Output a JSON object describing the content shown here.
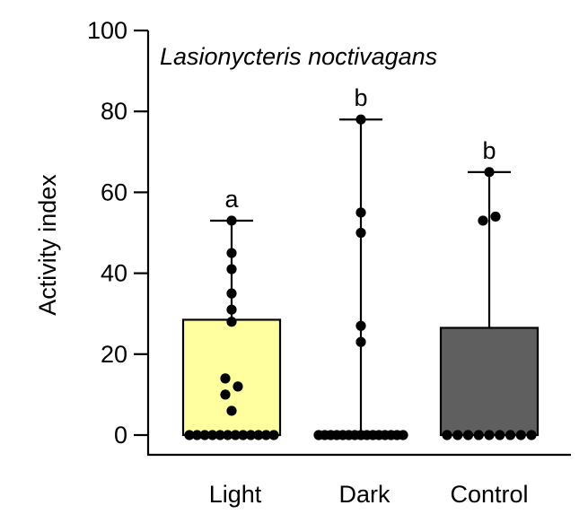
{
  "chart_data": {
    "type": "bar",
    "title": "Lasionycteris noctivagans",
    "xlabel": "",
    "ylabel": "Activity index",
    "ylim": [
      0,
      100
    ],
    "yticks": [
      0,
      20,
      40,
      60,
      80,
      100
    ],
    "grid": false,
    "categories": [
      "Light",
      "Dark",
      "Control"
    ],
    "values": [
      28.5,
      0,
      26.5
    ],
    "max": [
      53,
      78,
      65
    ],
    "significance": [
      "a",
      "b",
      "b"
    ],
    "colors": [
      "#ffff9f",
      "#ffffff",
      "#5f5f5f"
    ],
    "points": [
      [
        53,
        45,
        41,
        35,
        31,
        28,
        14,
        12,
        10,
        6,
        0,
        0,
        0,
        0,
        0,
        0,
        0,
        0,
        0,
        0,
        0,
        0
      ],
      [
        78,
        55,
        50,
        27,
        23,
        0,
        0,
        0,
        0,
        0,
        0,
        0,
        0,
        0,
        0,
        0,
        0,
        0,
        0,
        0
      ],
      [
        65,
        54,
        53,
        0,
        0,
        0,
        0,
        0,
        0,
        0,
        0,
        0
      ]
    ]
  }
}
